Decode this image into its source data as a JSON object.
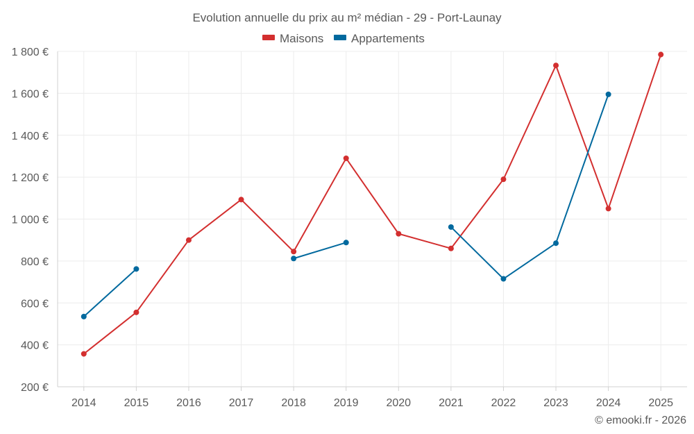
{
  "chart_data": {
    "type": "line",
    "title": "Evolution annuelle du prix au m² médian - 29 - Port-Launay",
    "categories": [
      "2014",
      "2015",
      "2016",
      "2017",
      "2018",
      "2019",
      "2020",
      "2021",
      "2022",
      "2023",
      "2024",
      "2025"
    ],
    "y_ticks": [
      200,
      400,
      600,
      800,
      1000,
      1200,
      1400,
      1600,
      1800
    ],
    "y_tick_labels": [
      "200 €",
      "400 €",
      "600 €",
      "800 €",
      "1 000 €",
      "1 200 €",
      "1 400 €",
      "1 600 €",
      "1 800 €"
    ],
    "ylim": [
      200,
      1800
    ],
    "grid": true,
    "legend_position": "top-center",
    "series": [
      {
        "name": "Maisons",
        "color": "#d32f2f",
        "values": [
          357,
          555,
          900,
          1093,
          845,
          1290,
          930,
          860,
          1190,
          1733,
          1050,
          1785
        ]
      },
      {
        "name": "Appartements",
        "color": "#01699e",
        "values": [
          535,
          762,
          null,
          null,
          812,
          888,
          null,
          962,
          715,
          885,
          1595,
          null
        ]
      }
    ]
  },
  "copyright": "© emooki.fr - 2026"
}
